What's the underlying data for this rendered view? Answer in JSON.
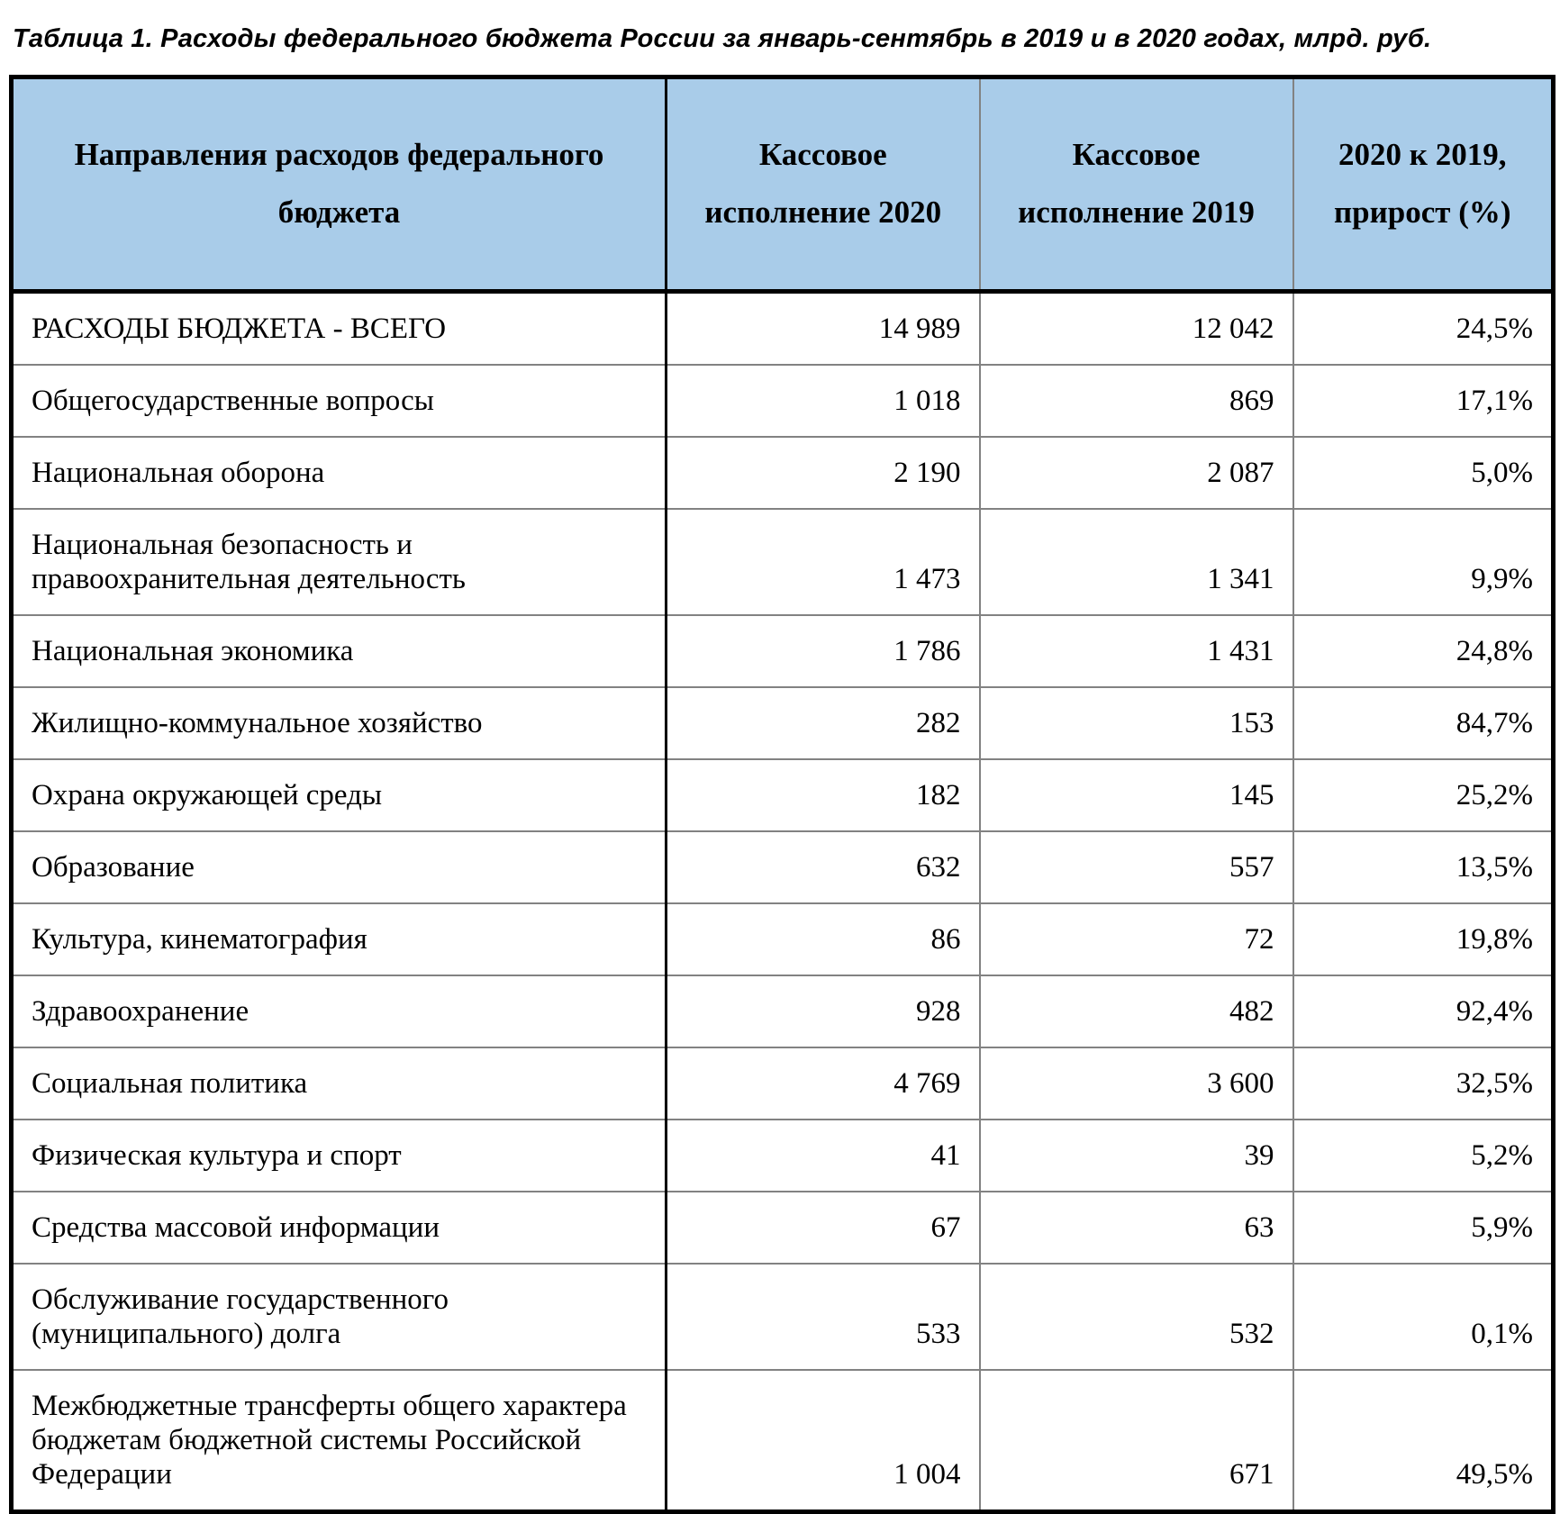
{
  "page": {
    "title": "Таблица 1. Расходы федерального бюджета России за январь-сентябрь в 2019 и в 2020 годах, млрд. руб."
  },
  "colors": {
    "header_bg": "#A9CCE9",
    "border_dark": "#000000",
    "border_light": "#828282",
    "text": "#000000"
  },
  "table": {
    "headers": [
      "Направления расходов федерального бюджета",
      "Кассовое исполнение 2020",
      "Кассовое исполнение 2019",
      "2020 к 2019, прирост (%)"
    ],
    "rows": [
      {
        "label": "РАСХОДЫ БЮДЖЕТА - ВСЕГО",
        "exec_2020": "14 989",
        "exec_2019": "12 042",
        "growth": "24,5%"
      },
      {
        "label": "Общегосударственные вопросы",
        "exec_2020": "1 018",
        "exec_2019": "869",
        "growth": "17,1%"
      },
      {
        "label": "Национальная оборона",
        "exec_2020": "2 190",
        "exec_2019": "2 087",
        "growth": "5,0%"
      },
      {
        "label": "Национальная безопасность и правоохранительная деятельность",
        "exec_2020": "1 473",
        "exec_2019": "1 341",
        "growth": "9,9%"
      },
      {
        "label": "Национальная экономика",
        "exec_2020": "1 786",
        "exec_2019": "1 431",
        "growth": "24,8%"
      },
      {
        "label": "Жилищно-коммунальное хозяйство",
        "exec_2020": "282",
        "exec_2019": "153",
        "growth": "84,7%"
      },
      {
        "label": "Охрана окружающей среды",
        "exec_2020": "182",
        "exec_2019": "145",
        "growth": "25,2%"
      },
      {
        "label": "Образование",
        "exec_2020": "632",
        "exec_2019": "557",
        "growth": "13,5%"
      },
      {
        "label": "Культура, кинематография",
        "exec_2020": "86",
        "exec_2019": "72",
        "growth": "19,8%"
      },
      {
        "label": "Здравоохранение",
        "exec_2020": "928",
        "exec_2019": "482",
        "growth": "92,4%"
      },
      {
        "label": "Социальная политика",
        "exec_2020": "4 769",
        "exec_2019": "3 600",
        "growth": "32,5%"
      },
      {
        "label": "Физическая культура и спорт",
        "exec_2020": "41",
        "exec_2019": "39",
        "growth": "5,2%"
      },
      {
        "label": "Средства массовой информации",
        "exec_2020": "67",
        "exec_2019": "63",
        "growth": "5,9%"
      },
      {
        "label": "Обслуживание государственного (муниципального) долга",
        "exec_2020": "533",
        "exec_2019": "532",
        "growth": "0,1%"
      },
      {
        "label": "Межбюджетные трансферты общего характера бюджетам бюджетной системы Российской Федерации",
        "exec_2020": "1 004",
        "exec_2019": "671",
        "growth": "49,5%"
      }
    ]
  }
}
